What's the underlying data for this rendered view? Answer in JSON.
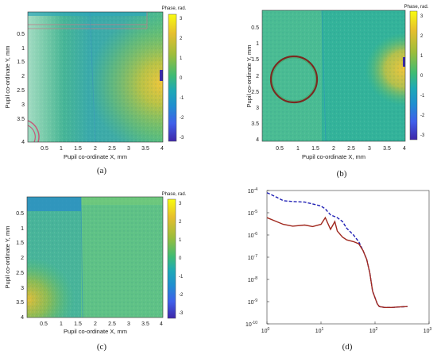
{
  "chart_data": [
    {
      "panel": "(a)",
      "type": "heatmap",
      "xlabel": "Pupil co-ordinate X, mm",
      "ylabel": "Pupil co-ordinate Y, mm",
      "xticks": [
        "0.5",
        "1",
        "1.5",
        "2",
        "2.5",
        "3",
        "3.5",
        "4"
      ],
      "yticks": [
        "0.5",
        "1",
        "1.5",
        "2",
        "2.5",
        "3",
        "3.5",
        "4"
      ],
      "xlim": [
        0,
        4
      ],
      "ylim": [
        0,
        4
      ],
      "y_reversed": true,
      "colorbar": {
        "title": "Phase, rad.",
        "ticks": [
          "3",
          "2",
          "1",
          "0",
          "-1",
          "-2",
          "-3"
        ],
        "range": [
          -3.2,
          3.2
        ],
        "colormap": "parula"
      }
    },
    {
      "panel": "(b)",
      "type": "heatmap",
      "xlabel": "Pupil co-ordinate X, mm",
      "ylabel": "Pupil co-ordinate Y, mm",
      "xticks": [
        "0.5",
        "1",
        "1.5",
        "2",
        "2.5",
        "3",
        "3.5",
        "4"
      ],
      "yticks": [
        "0.5",
        "1",
        "1.5",
        "2",
        "2.5",
        "3",
        "3.5",
        "4"
      ],
      "xlim": [
        0,
        4
      ],
      "ylim": [
        0,
        4
      ],
      "y_reversed": true,
      "annotation": {
        "shape": "circle",
        "center": [
          0.9,
          2.0
        ],
        "radius": 0.7,
        "color": "#7a2a20"
      },
      "colorbar": {
        "title": "Phase, rad.",
        "ticks": [
          "3",
          "2",
          "1",
          "0",
          "-1",
          "-2",
          "-3"
        ],
        "range": [
          -3.2,
          3.2
        ],
        "colormap": "parula"
      }
    },
    {
      "panel": "(c)",
      "type": "heatmap",
      "xlabel": "Pupil co-ordinate X, mm",
      "ylabel": "Pupil co-ordinate Y, mm",
      "xticks": [
        "0.5",
        "1",
        "1.5",
        "2",
        "2.5",
        "3",
        "3.5",
        "4"
      ],
      "yticks": [
        "0.5",
        "1",
        "1.5",
        "2",
        "2.5",
        "3",
        "3.5",
        "4"
      ],
      "xlim": [
        0,
        4
      ],
      "ylim": [
        0,
        4
      ],
      "y_reversed": true,
      "colorbar": {
        "title": "Phase, rad.",
        "ticks": [
          "3",
          "2",
          "1",
          "0",
          "-1",
          "-2",
          "-3"
        ],
        "range": [
          -3.2,
          3.2
        ],
        "colormap": "parula"
      }
    },
    {
      "panel": "(d)",
      "type": "line",
      "xscale": "log",
      "yscale": "log",
      "xlim": [
        1,
        1000
      ],
      "ylim": [
        1e-10,
        0.0001
      ],
      "xticks": [
        {
          "v": 1,
          "e": "0"
        },
        {
          "v": 10,
          "e": "1"
        },
        {
          "v": 100,
          "e": "2"
        },
        {
          "v": 1000,
          "e": "3"
        }
      ],
      "yticks": [
        {
          "v": 0.0001,
          "e": "-4"
        },
        {
          "v": 1e-05,
          "e": "-5"
        },
        {
          "v": 1e-06,
          "e": "-6"
        },
        {
          "v": 1e-07,
          "e": "-7"
        },
        {
          "v": 1e-08,
          "e": "-8"
        },
        {
          "v": 1e-09,
          "e": "-9"
        },
        {
          "v": 1e-10,
          "e": "-10"
        }
      ],
      "series": [
        {
          "style": "dashed",
          "color": "#1f1fb4",
          "x": [
            1,
            1.5,
            2,
            3,
            5,
            7,
            10,
            12,
            15,
            20,
            25,
            30,
            40,
            50,
            60,
            70,
            80,
            90,
            100,
            110,
            120,
            150,
            200,
            300,
            400
          ],
          "y": [
            8e-05,
            5e-05,
            3.5e-05,
            3.2e-05,
            3e-05,
            2.5e-05,
            2e-05,
            1.5e-05,
            8e-06,
            6e-06,
            4e-06,
            2e-06,
            1e-06,
            5e-07,
            2e-07,
            8e-08,
            2e-08,
            3e-09,
            1.5e-09,
            8e-10,
            6e-10,
            5.5e-10,
            5.5e-10,
            5.8e-10,
            6e-10
          ]
        },
        {
          "style": "solid",
          "color": "#a0281e",
          "x": [
            1,
            1.5,
            2,
            3,
            5,
            7,
            10,
            12,
            15,
            18,
            20,
            25,
            30,
            40,
            50,
            60,
            70,
            80,
            90,
            100,
            110,
            120,
            150,
            200,
            300,
            400
          ],
          "y": [
            6e-06,
            4e-06,
            3e-06,
            2.5e-06,
            2.8e-06,
            2.4e-06,
            3e-06,
            6e-06,
            1.8e-06,
            4e-06,
            1.5e-06,
            8e-07,
            6e-07,
            5e-07,
            4e-07,
            2e-07,
            8e-08,
            2e-08,
            3e-09,
            1.5e-09,
            8e-10,
            6e-10,
            5.5e-10,
            5.5e-10,
            5.8e-10,
            6e-10
          ]
        }
      ]
    }
  ],
  "colors": {
    "red_curve": "#a0281e",
    "blue_curve": "#1f1fb4",
    "circle": "#7a2a20"
  }
}
